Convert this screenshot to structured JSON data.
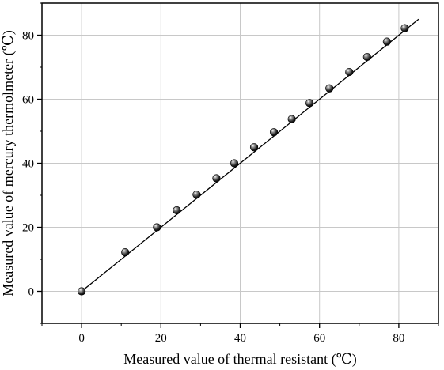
{
  "chart_data": {
    "type": "scatter",
    "title": "",
    "xlabel": "Measured value of thermal resistant (℃)",
    "ylabel": "Measured value of mercury thermolmeter (℃)",
    "xlim": [
      -10,
      90
    ],
    "ylim": [
      -10,
      90
    ],
    "x_ticks": [
      0,
      20,
      40,
      60,
      80
    ],
    "y_ticks": [
      0,
      20,
      40,
      60,
      80
    ],
    "grid": true,
    "series": [
      {
        "marker": "sphere",
        "color": "#111111",
        "x": [
          0,
          11,
          19,
          24,
          29,
          34,
          38.5,
          43.5,
          48.5,
          53,
          57.5,
          62.5,
          67.5,
          72,
          77,
          81.5
        ],
        "y": [
          0,
          12.2,
          20,
          25.3,
          30.2,
          35.3,
          40,
          45,
          49.7,
          53.8,
          58.8,
          63.4,
          68.5,
          73.2,
          78,
          82.2
        ]
      }
    ],
    "fit_line": {
      "x": [
        0,
        85
      ],
      "y": [
        0,
        85
      ]
    }
  }
}
